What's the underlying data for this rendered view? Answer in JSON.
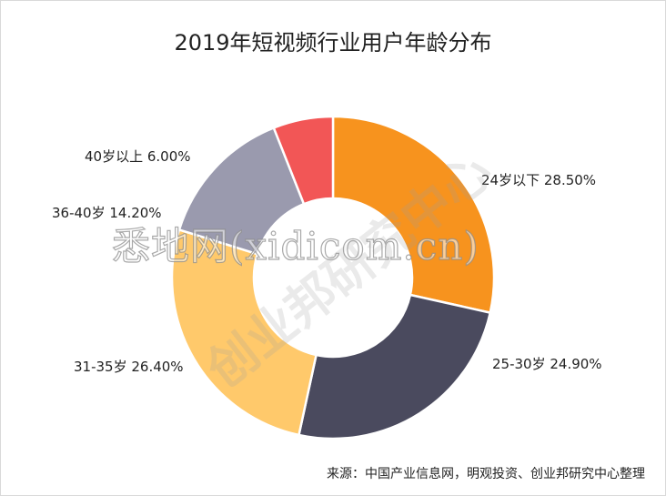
{
  "title": "2019年短视频行业用户年龄分布",
  "source": "来源：中国产业信息网，明观投资、创业邦研究中心整理",
  "watermark_text": "悉地网(xidicom.cn)",
  "watermark_diag": "创业邦研究中心",
  "chart_data": {
    "type": "pie",
    "title": "2019年短视频行业用户年龄分布",
    "categories": [
      "24岁以下",
      "25-30岁",
      "31-35岁",
      "36-40岁",
      "40岁以上"
    ],
    "values": [
      28.5,
      24.9,
      26.4,
      14.2,
      6.0
    ],
    "labels": [
      "24岁以下 28.50%",
      "25-30岁 24.90%",
      "31-35岁 26.40%",
      "36-40岁 14.20%",
      "40岁以上 6.00%"
    ],
    "colors": [
      "#F7931E",
      "#4A4A5E",
      "#FFC96B",
      "#9A9AAE",
      "#F25656"
    ],
    "donut": true
  }
}
